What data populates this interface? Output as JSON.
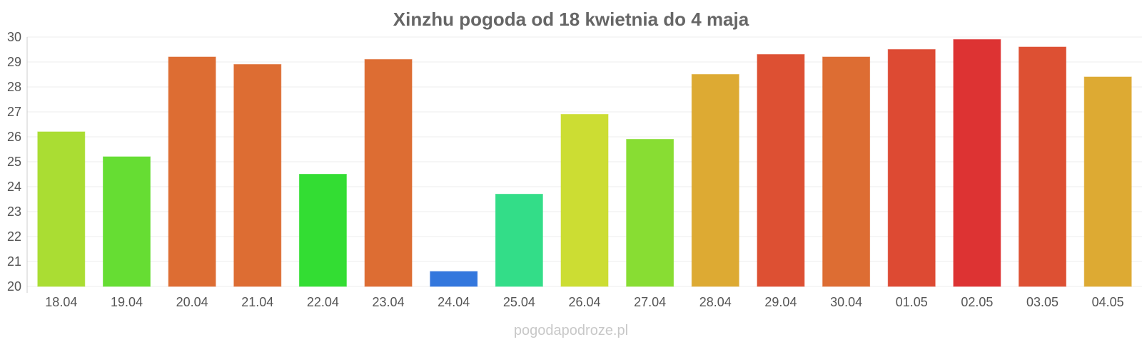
{
  "chart_data": {
    "type": "bar",
    "title": "Xinzhu pogoda od 18 kwietnia do 4 maja",
    "categories": [
      "18.04",
      "19.04",
      "20.04",
      "21.04",
      "22.04",
      "23.04",
      "24.04",
      "25.04",
      "26.04",
      "27.04",
      "28.04",
      "29.04",
      "30.04",
      "01.05",
      "02.05",
      "03.05",
      "04.05"
    ],
    "values": [
      26.2,
      25.2,
      29.2,
      28.9,
      24.5,
      29.1,
      20.6,
      23.7,
      26.9,
      25.9,
      28.5,
      29.3,
      29.2,
      29.5,
      29.9,
      29.6,
      28.4
    ],
    "colors": [
      "#aadd33",
      "#66dd33",
      "#dd6d33",
      "#dd6d33",
      "#33dd33",
      "#dd6d33",
      "#3377dd",
      "#33dd88",
      "#ccdd33",
      "#88dd33",
      "#ddaa33",
      "#dd5033",
      "#dd6d33",
      "#dd4a33",
      "#dd3333",
      "#dd5033",
      "#ddaa33"
    ],
    "yticks": [
      20,
      21,
      22,
      23,
      24,
      25,
      26,
      27,
      28,
      29,
      30
    ],
    "ylim": [
      20,
      30
    ],
    "xlabel": "",
    "ylabel": "",
    "grid": true,
    "legend": "none"
  },
  "footer": {
    "source": "pogodapodroze.pl"
  }
}
